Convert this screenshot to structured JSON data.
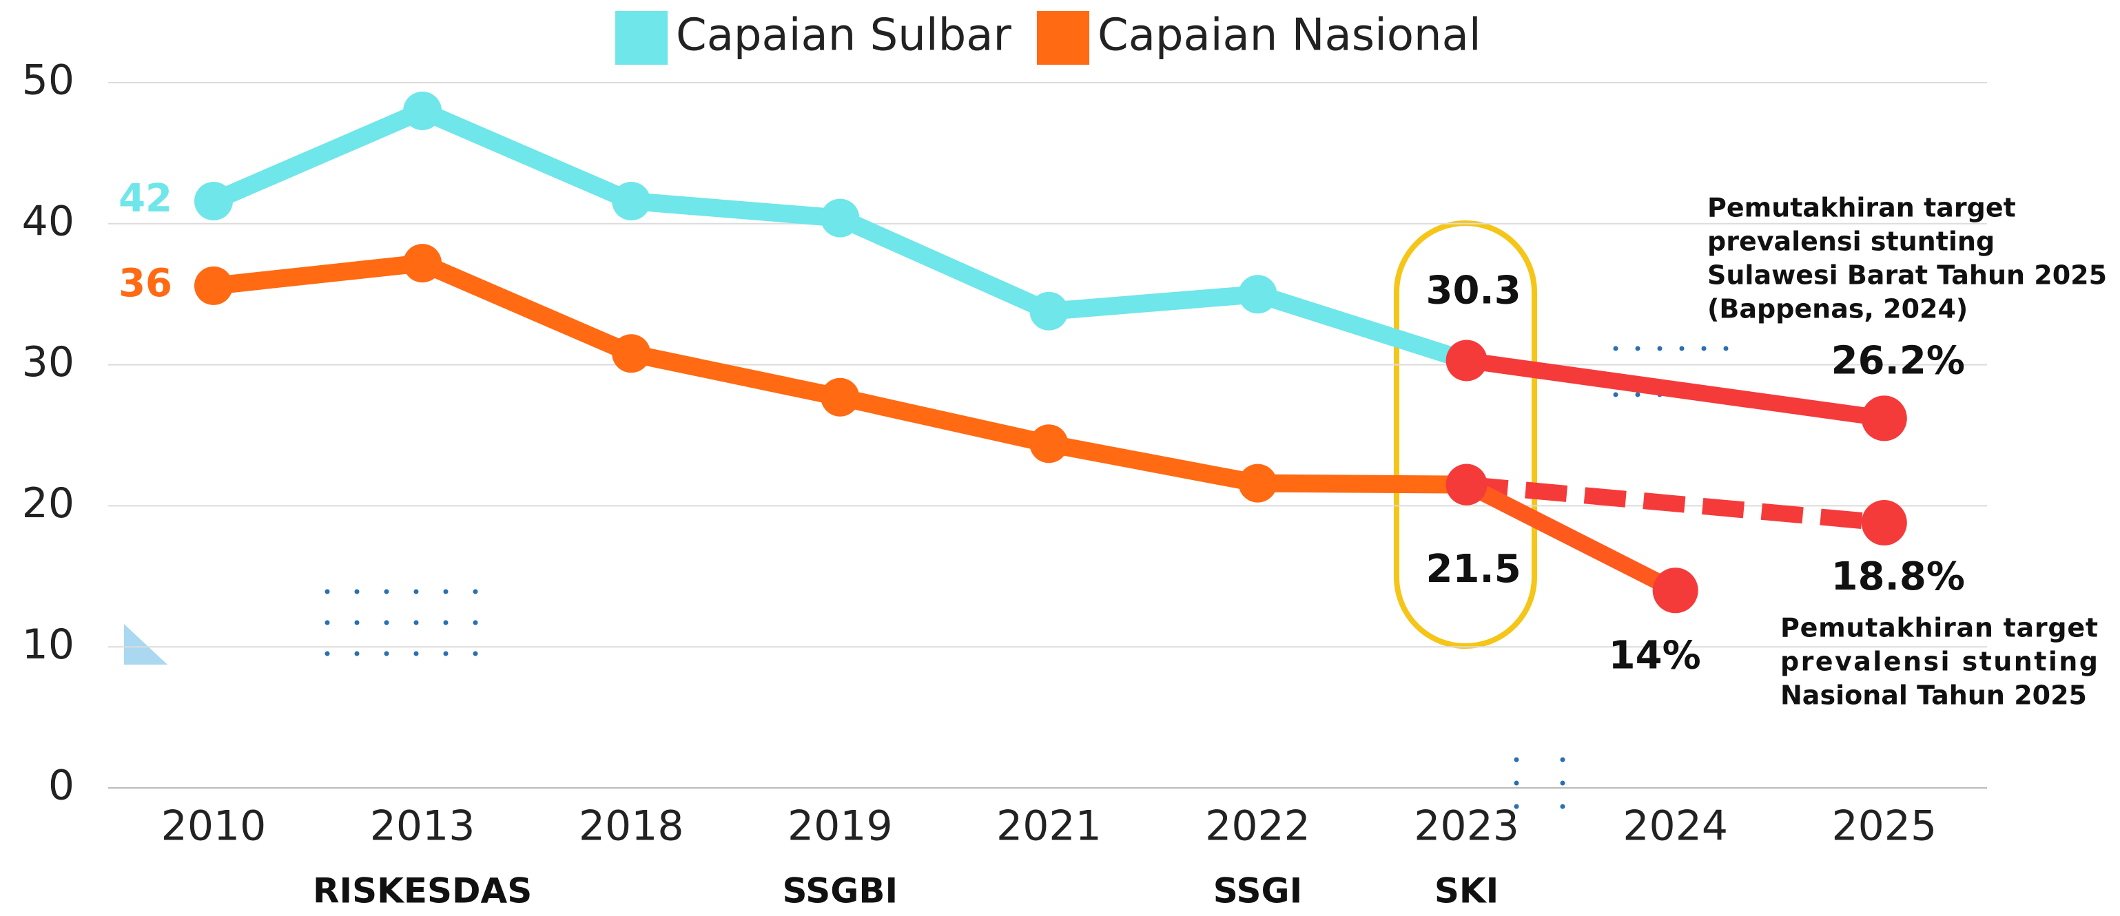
{
  "chart_data": {
    "type": "line",
    "categories": [
      "2010",
      "2013",
      "2018",
      "2019",
      "2021",
      "2022",
      "2023",
      "2024",
      "2025"
    ],
    "sublabels": [
      null,
      "RISKESDAS",
      null,
      "SSGBI",
      null,
      "SSGI",
      "SKI",
      null,
      null
    ],
    "ylim": [
      0,
      50
    ],
    "yticks": [
      0,
      10,
      20,
      30,
      40,
      50
    ],
    "grid": true,
    "legend": "top",
    "series": [
      {
        "name": "Capaian Sulbar",
        "color": "#6ee6ea",
        "values": [
          41.6,
          48.0,
          41.6,
          40.4,
          33.8,
          35.0,
          30.3,
          null,
          null
        ],
        "value_labels": [
          "42",
          null,
          null,
          null,
          null,
          null,
          null,
          null,
          null
        ]
      },
      {
        "name": "Capaian Nasional",
        "color": "#ff6a13",
        "values": [
          35.6,
          37.2,
          30.8,
          27.7,
          24.4,
          21.6,
          21.5,
          null,
          null
        ],
        "value_labels": [
          "36",
          null,
          null,
          null,
          null,
          null,
          null,
          null,
          null
        ]
      },
      {
        "color": "#f53a3a",
        "x": [
          "2023",
          "2025"
        ],
        "values": [
          30.3,
          26.2
        ],
        "value_labels": [
          "30.3",
          "26.2%"
        ],
        "dashed": false
      },
      {
        "color": "#f53a3a",
        "x": [
          "2023",
          "2025"
        ],
        "values": [
          21.5,
          18.8
        ],
        "value_labels": [
          "21.5",
          "18.8%"
        ],
        "dashed": true
      },
      {
        "color": "#f53a3a",
        "line_color": "#ff5a1e",
        "x": [
          "2023",
          "2024"
        ],
        "values": [
          21.5,
          14
        ],
        "value_labels": [
          null,
          "14%"
        ],
        "dashed": false
      }
    ],
    "annotations": [
      {
        "lines": [
          "Pemutakhiran target",
          "prevalensi stunting",
          "Sulawesi Barat Tahun 2025",
          "(Bappenas, 2024)"
        ]
      },
      {
        "lines": [
          "Pemutakhiran target",
          "prevalensi stunting",
          "Nasional Tahun 2025"
        ],
        "justify": true
      }
    ]
  }
}
